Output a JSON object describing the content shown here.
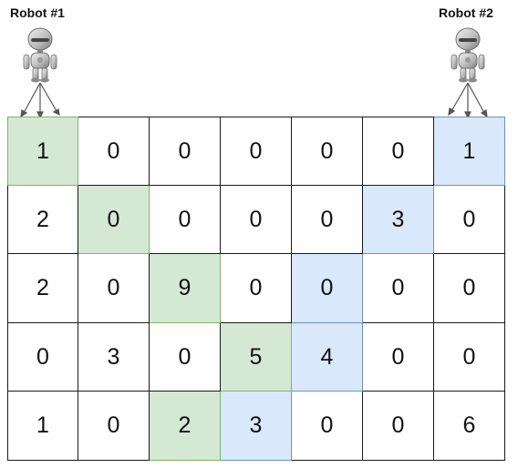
{
  "robots": [
    {
      "label": "Robot #1"
    },
    {
      "label": "Robot #2"
    }
  ],
  "colors": {
    "robot1_path_fill": "#d5e8d4",
    "robot1_path_border": "#82b366",
    "robot2_path_fill": "#dae8fc",
    "robot2_path_border": "#6c8ebf",
    "grid_line": "#1a1a1a",
    "arrow": "#555555"
  },
  "grid": {
    "rows": [
      [
        1,
        0,
        0,
        0,
        0,
        0,
        1
      ],
      [
        2,
        0,
        0,
        0,
        0,
        3,
        0
      ],
      [
        2,
        0,
        9,
        0,
        0,
        0,
        0
      ],
      [
        0,
        3,
        0,
        5,
        4,
        0,
        0
      ],
      [
        1,
        0,
        2,
        3,
        0,
        0,
        6
      ]
    ],
    "robot1_path": [
      [
        0,
        0
      ],
      [
        1,
        1
      ],
      [
        2,
        2
      ],
      [
        3,
        3
      ],
      [
        4,
        2
      ]
    ],
    "robot2_path": [
      [
        0,
        6
      ],
      [
        1,
        5
      ],
      [
        2,
        4
      ],
      [
        3,
        4
      ],
      [
        4,
        3
      ]
    ]
  }
}
